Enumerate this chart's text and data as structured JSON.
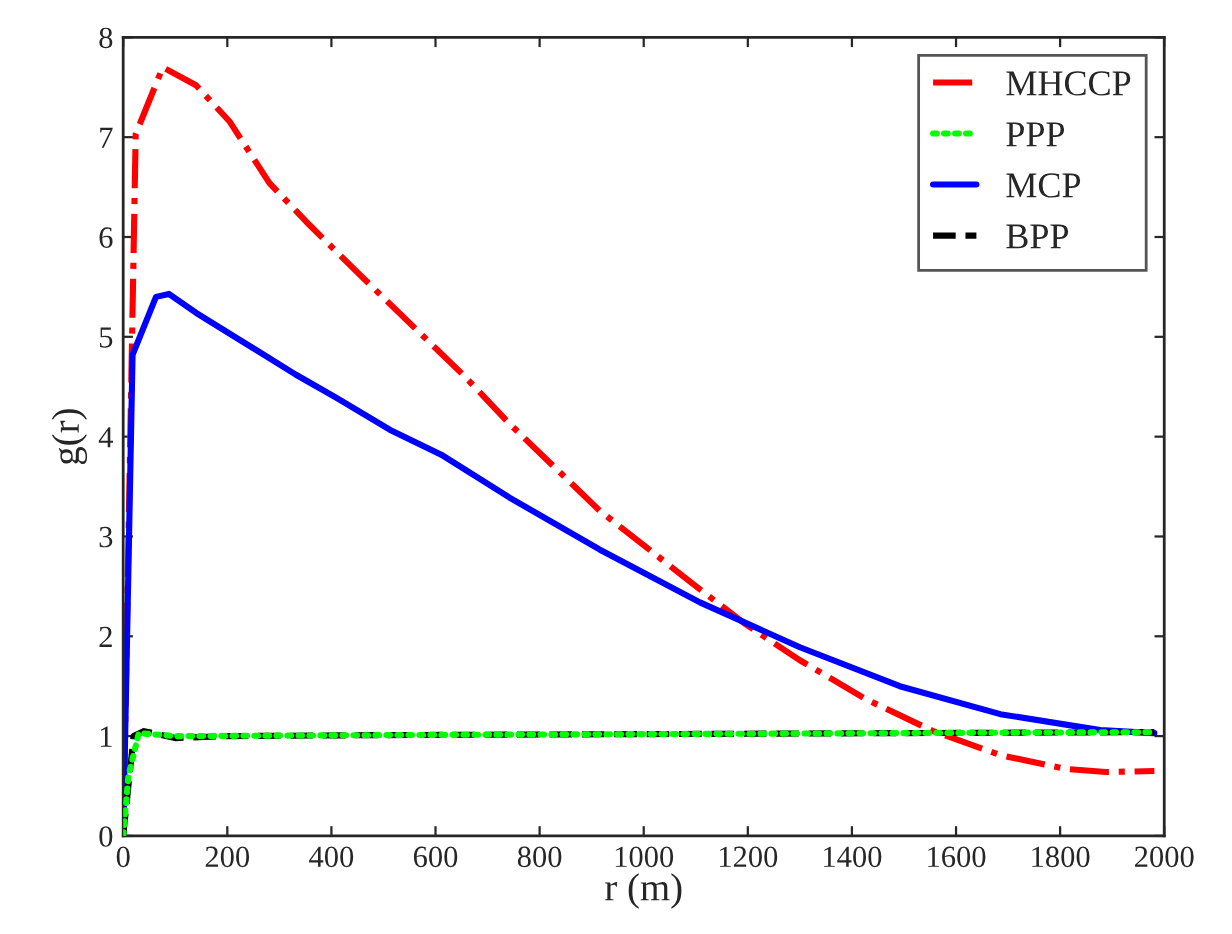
{
  "chart_data": {
    "type": "line",
    "xlabel": "r (m)",
    "ylabel": "g(r)",
    "xlim": [
      0,
      2000
    ],
    "xticks": [
      0,
      200,
      400,
      600,
      800,
      1000,
      1200,
      1400,
      1600,
      1800,
      2000
    ],
    "ylim": [
      0,
      8
    ],
    "yticks": [
      0,
      1,
      2,
      3,
      4,
      5,
      6,
      7,
      8
    ],
    "legend": "top right",
    "grid": false,
    "marker": "none",
    "series": [
      {
        "name": "MHCCP",
        "color": "#ff0000",
        "line_style": "dashdot",
        "x": [
          0,
          24,
          76,
          140,
          204,
          281,
          358,
          447,
          550,
          653,
          742,
          915,
          1108,
          1196,
          1300,
          1427,
          1556,
          1685,
          1812,
          1888,
          1981
        ],
        "values": [
          0,
          7.03,
          7.7,
          7.52,
          7.16,
          6.54,
          6.12,
          5.66,
          5.14,
          4.62,
          4.13,
          3.26,
          2.47,
          2.12,
          1.76,
          1.37,
          1.05,
          0.81,
          0.67,
          0.64,
          0.65
        ]
      },
      {
        "name": "PPP",
        "color": "#00ff00",
        "line_style": "dotted",
        "x": [
          0,
          10,
          30,
          100,
          500,
          1000,
          1500,
          1981
        ],
        "values": [
          0,
          0.6,
          1.03,
          1.0,
          1.01,
          1.02,
          1.03,
          1.04
        ]
      },
      {
        "name": "MCP",
        "color": "#0000ff",
        "line_style": "solid",
        "x": [
          0,
          18,
          63,
          88,
          140,
          230,
          332,
          409,
          512,
          614,
          742,
          915,
          1108,
          1300,
          1492,
          1685,
          1877,
          1981
        ],
        "values": [
          0,
          4.82,
          5.4,
          5.43,
          5.24,
          4.95,
          4.62,
          4.39,
          4.07,
          3.81,
          3.39,
          2.87,
          2.34,
          1.89,
          1.5,
          1.22,
          1.06,
          1.03
        ]
      },
      {
        "name": "BPP",
        "color": "#000000",
        "line_style": "dashed",
        "x": [
          0,
          20,
          40,
          100,
          200,
          500,
          1000,
          1500,
          1981
        ],
        "values": [
          0,
          1.0,
          1.05,
          0.98,
          1.0,
          1.01,
          1.02,
          1.03,
          1.04
        ]
      }
    ]
  }
}
